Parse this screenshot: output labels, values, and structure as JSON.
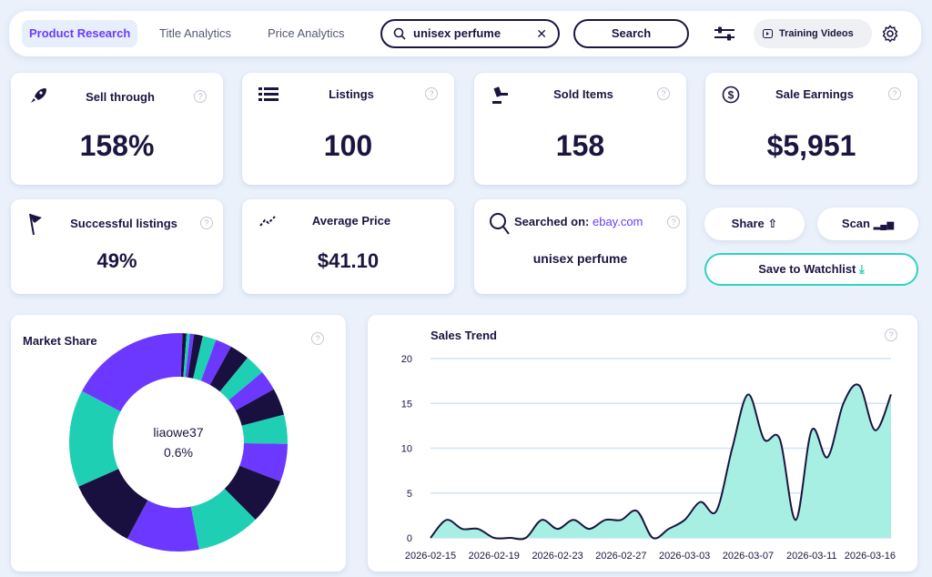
{
  "nav": {
    "tabs": [
      {
        "label": "Product Research",
        "active": true
      },
      {
        "label": "Title Analytics",
        "active": false
      },
      {
        "label": "Price Analytics",
        "active": false
      }
    ],
    "search_value": "unisex perfume",
    "search_button": "Search",
    "training_videos": "Training Videos"
  },
  "stats": [
    {
      "title": "Sell through",
      "value": "158%",
      "icon": "rocket-icon"
    },
    {
      "title": "Listings",
      "value": "100",
      "icon": "list-icon"
    },
    {
      "title": "Sold Items",
      "value": "158",
      "icon": "gavel-icon"
    },
    {
      "title": "Sale Earnings",
      "value": "$5,951",
      "icon": "dollar-icon"
    },
    {
      "title": "Successful listings",
      "value": "49%",
      "icon": "flag-icon"
    },
    {
      "title": "Average Price",
      "value": "$41.10",
      "icon": "trend-icon"
    }
  ],
  "searched": {
    "label": "Searched on:",
    "site": "ebay.com",
    "query": "unisex perfume"
  },
  "actions": {
    "share": "Share",
    "scan": "Scan",
    "watchlist": "Save to Watchlist"
  },
  "colors": {
    "dark": "#1a1040",
    "purple": "#6c38ff",
    "teal": "#1fcfb4",
    "accent": "#6a3cff",
    "fill": "#a8efe3"
  },
  "chart_data": [
    {
      "type": "pie",
      "title": "Market Share",
      "center_label": "liaowe37",
      "center_value": "0.6%",
      "values": [
        0.6,
        0.6,
        0.5,
        0.6,
        1.3,
        2.0,
        2.4,
        2.9,
        3.0,
        3.0,
        4.0,
        4.3,
        5.6,
        6.7,
        9.4,
        10.8,
        10.6,
        14.4,
        17.2
      ],
      "colors_cycle": [
        "#6c38ff",
        "#1a1040",
        "#1fcfb4"
      ]
    },
    {
      "type": "area",
      "title": "Sales Trend",
      "ylim": [
        0,
        20
      ],
      "yticks": [
        0,
        5,
        10,
        15,
        20
      ],
      "grid": true,
      "x": [
        "2026-02-15",
        "2026-02-16",
        "2026-02-17",
        "2026-02-18",
        "2026-02-19",
        "2026-02-20",
        "2026-02-21",
        "2026-02-22",
        "2026-02-23",
        "2026-02-24",
        "2026-02-25",
        "2026-02-26",
        "2026-02-27",
        "2026-02-28",
        "2026-03-01",
        "2026-03-02",
        "2026-03-03",
        "2026-03-04",
        "2026-03-05",
        "2026-03-06",
        "2026-03-07",
        "2026-03-08",
        "2026-03-09",
        "2026-03-10",
        "2026-03-11",
        "2026-03-12",
        "2026-03-13",
        "2026-03-14",
        "2026-03-15",
        "2026-03-16"
      ],
      "values": [
        0,
        2,
        1,
        1,
        0,
        0,
        0,
        2,
        1,
        2,
        1,
        2,
        2,
        3,
        0,
        1,
        2,
        4,
        3,
        10,
        16,
        11,
        11,
        2,
        12,
        9,
        15,
        17,
        12,
        16
      ],
      "xtick_labels": [
        "2026-02-15",
        "2026-02-19",
        "2026-02-23",
        "2026-02-27",
        "2026-03-03",
        "2026-03-07",
        "2026-03-11",
        "2026-03-16"
      ]
    }
  ]
}
